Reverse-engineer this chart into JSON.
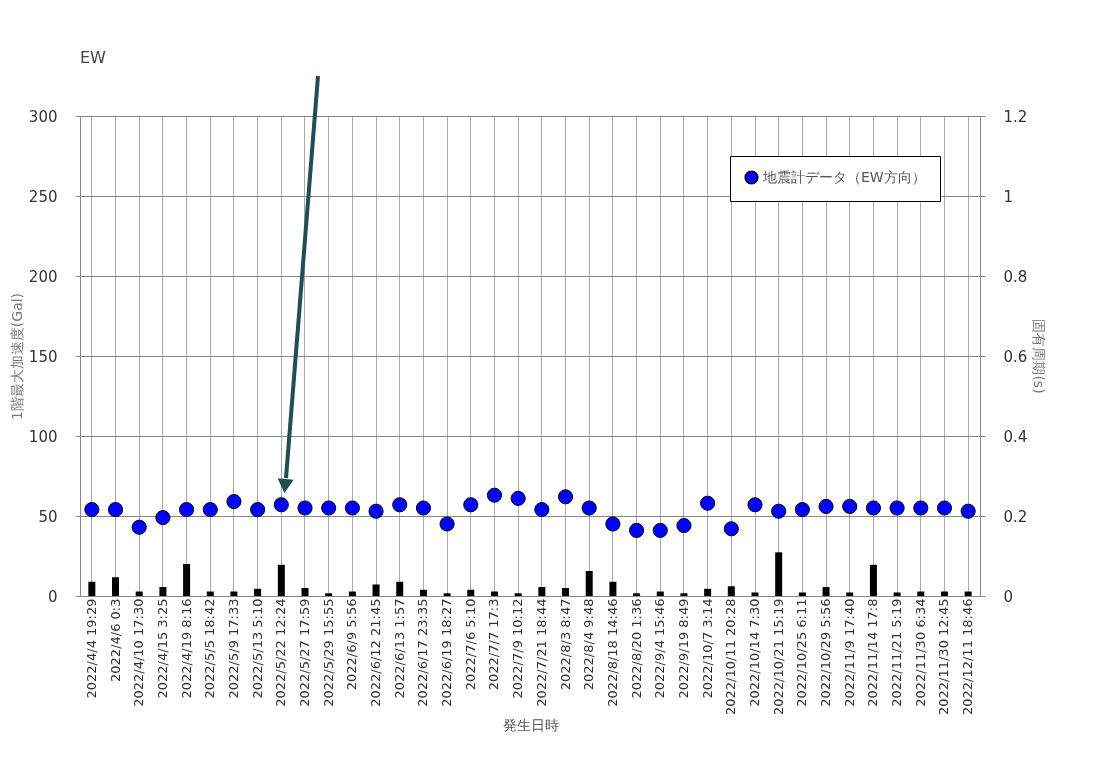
{
  "chart_data": {
    "type": "bar",
    "title": "EW",
    "xlabel": "発生日時",
    "ylabel": "1階最大加速度(Gal)",
    "y2label": "固有周期(s)",
    "categories": [
      "2022/4/4 19:29",
      "2022/4/6 0:3",
      "2022/4/10 17:30",
      "2022/4/15 3:25",
      "2022/4/19 8:16",
      "2022/5/5 18:42",
      "2022/5/9 17:33",
      "2022/5/13 5:10",
      "2022/5/22 12:24",
      "2022/5/27 17:59",
      "2022/5/29 15:55",
      "2022/6/9 5:56",
      "2022/6/12 21:45",
      "2022/6/13 1:57",
      "2022/6/17 23:35",
      "2022/6/19 18:27",
      "2022/7/6 5:10",
      "2022/7/7 17:3",
      "2022/7/9 10:12",
      "2022/7/21 18:44",
      "2022/8/3 8:47",
      "2022/8/4 9:48",
      "2022/8/18 14:46",
      "2022/8/20 1:36",
      "2022/9/4 15:46",
      "2022/9/19 8:49",
      "2022/10/7 3:14",
      "2022/10/11 20:28",
      "2022/10/14 7:30",
      "2022/10/21 15:19",
      "2022/10/25 6:11",
      "2022/10/29 5:56",
      "2022/11/9 17:40",
      "2022/11/14 17:8",
      "2022/11/21 5:19",
      "2022/11/30 6:34",
      "2022/11/30 12:45",
      "2022/12/11 18:46"
    ],
    "series": [
      {
        "color": "#000000",
        "values": [
          8.9,
          11.7,
          2.8,
          5.6,
          20,
          2.8,
          2.8,
          4.5,
          19.5,
          5,
          1.7,
          2.8,
          7.2,
          8.9,
          3.9,
          1.7,
          3.9,
          2.8,
          1.7,
          5.6,
          5,
          15.6,
          8.9,
          1.7,
          2.8,
          1.7,
          4.5,
          6.1,
          2.2,
          27.3,
          2.2,
          5.6,
          2.2,
          19.5,
          2.2,
          2.8,
          2.8,
          2.8
        ]
      },
      {
        "type": "scatter",
        "name": "地震計データ（EW方向）",
        "axis": "y2",
        "color": "#0000ff",
        "values": [
          0.216,
          0.216,
          0.172,
          0.196,
          0.216,
          0.216,
          0.236,
          0.216,
          0.228,
          0.22,
          0.22,
          0.22,
          0.212,
          0.228,
          0.22,
          0.18,
          0.228,
          0.252,
          0.244,
          0.216,
          0.248,
          0.22,
          0.18,
          0.164,
          0.164,
          0.176,
          0.232,
          0.168,
          0.228,
          0.212,
          0.216,
          0.224,
          0.224,
          0.22,
          0.22,
          0.22,
          0.22,
          0.212
        ]
      }
    ],
    "ylim": [
      0,
      300
    ],
    "yticks": [
      0,
      50,
      100,
      150,
      200,
      250,
      300
    ],
    "y2lim": [
      0,
      1.2
    ],
    "y2ticks": [
      0,
      0.2,
      0.4,
      0.6,
      0.8,
      1,
      1.2
    ],
    "grid": true,
    "legend": "top right",
    "marker": "circle"
  }
}
